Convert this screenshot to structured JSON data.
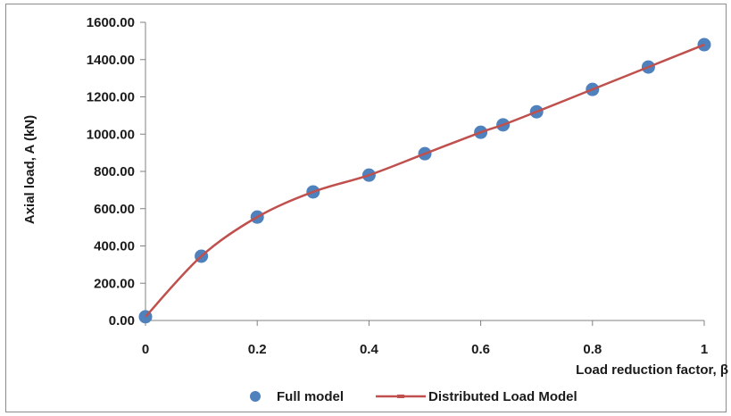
{
  "chart_data": {
    "type": "scatter",
    "title": "",
    "xlabel": "Load reduction factor, β",
    "ylabel": "Axial load, A (kN)",
    "xlim": [
      0,
      1
    ],
    "ylim": [
      0,
      1600
    ],
    "x_ticks": [
      "0",
      "0.2",
      "0.4",
      "0.6",
      "0.8",
      "1"
    ],
    "y_ticks": [
      "0.00",
      "200.00",
      "400.00",
      "600.00",
      "800.00",
      "1000.00",
      "1200.00",
      "1400.00",
      "1600.00"
    ],
    "grid": false,
    "legend_position": "bottom",
    "series": [
      {
        "name": "Full model",
        "style": "markers",
        "color": "#4f81bd",
        "x": [
          0,
          0.1,
          0.2,
          0.3,
          0.4,
          0.5,
          0.6,
          0.64,
          0.7,
          0.8,
          0.9,
          1.0
        ],
        "y": [
          20,
          345,
          555,
          690,
          780,
          895,
          1010,
          1050,
          1120,
          1240,
          1360,
          1480
        ]
      },
      {
        "name": "Distributed Load Model",
        "style": "smooth-line",
        "color": "#c0504d",
        "x": [
          0,
          0.1,
          0.2,
          0.3,
          0.4,
          0.5,
          0.6,
          0.64,
          0.7,
          0.8,
          0.9,
          1.0
        ],
        "y": [
          20,
          345,
          555,
          690,
          780,
          895,
          1010,
          1050,
          1120,
          1240,
          1360,
          1480
        ]
      }
    ]
  }
}
